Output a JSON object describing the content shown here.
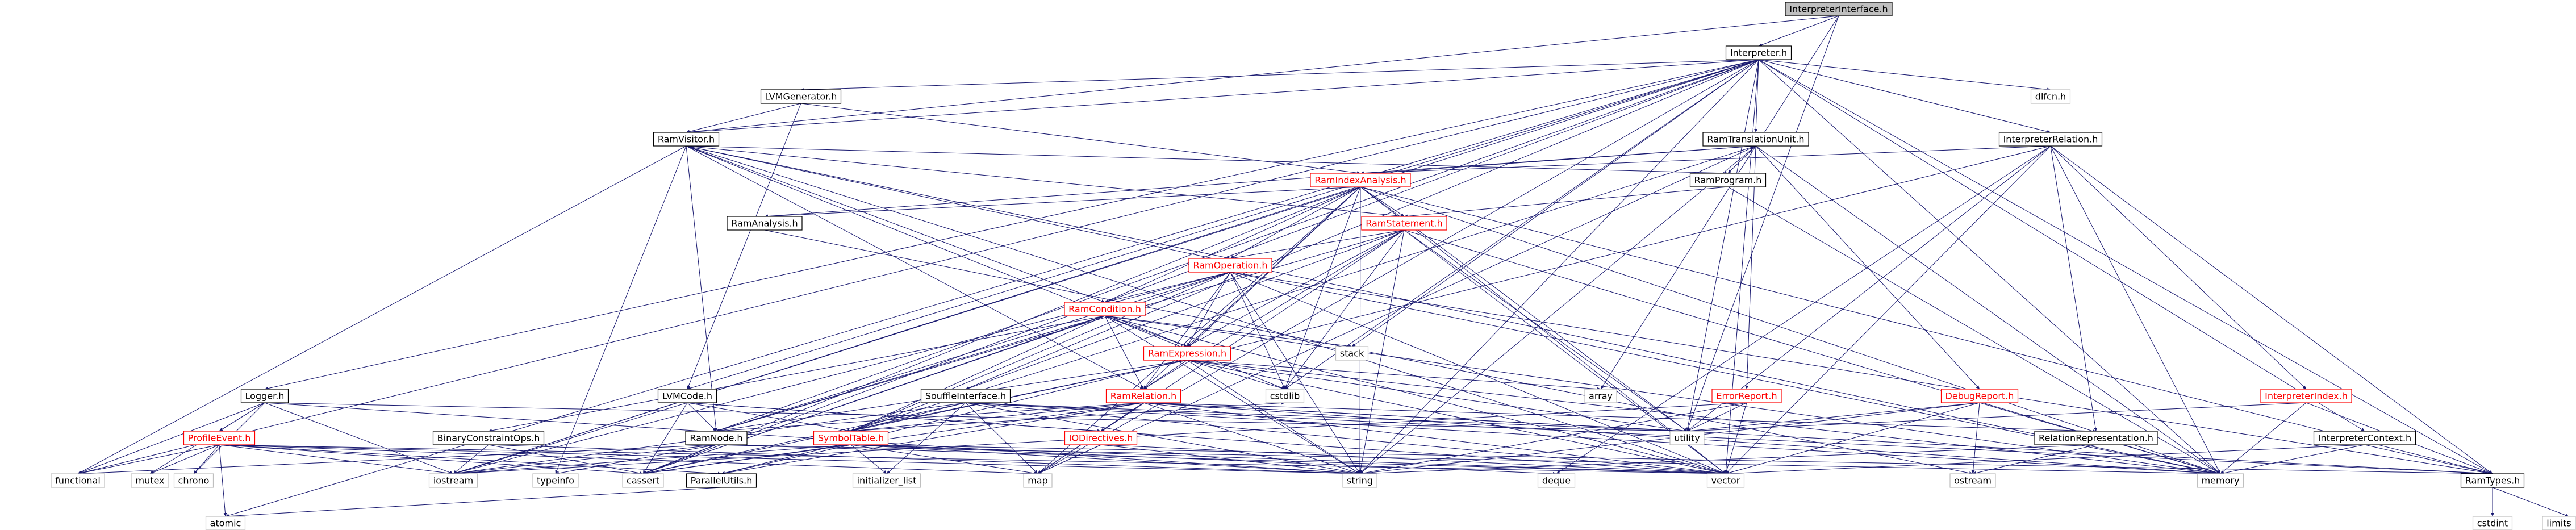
{
  "diagram": {
    "node_styles": {
      "root": {
        "fill": "#bfbfbf",
        "stroke": "#000000",
        "text": "#000000"
      },
      "internal": {
        "fill": "#ffffff",
        "stroke": "#000000",
        "text": "#000000"
      },
      "partial": {
        "fill": "#ffffff",
        "stroke": "#ff0000",
        "text": "#ff0000"
      },
      "external": {
        "fill": "#ffffff",
        "stroke": "#bfbfbf",
        "text": "#000000"
      }
    },
    "edge_color": "#191970",
    "nodes": [
      {
        "id": "InterpreterInterface.h",
        "label": "InterpreterInterface.h",
        "style": "root"
      },
      {
        "id": "Interpreter.h",
        "label": "Interpreter.h",
        "style": "internal"
      },
      {
        "id": "LVMGenerator.h",
        "label": "LVMGenerator.h",
        "style": "internal"
      },
      {
        "id": "RamTranslationUnit.h",
        "label": "RamTranslationUnit.h",
        "style": "internal"
      },
      {
        "id": "InterpreterRelation.h",
        "label": "InterpreterRelation.h",
        "style": "internal"
      },
      {
        "id": "dlfcn.h",
        "label": "dlfcn.h",
        "style": "external"
      },
      {
        "id": "RamVisitor.h",
        "label": "RamVisitor.h",
        "style": "internal"
      },
      {
        "id": "RamIndexAnalysis.h",
        "label": "RamIndexAnalysis.h",
        "style": "partial"
      },
      {
        "id": "RamProgram.h",
        "label": "RamProgram.h",
        "style": "internal"
      },
      {
        "id": "RamAnalysis.h",
        "label": "RamAnalysis.h",
        "style": "internal"
      },
      {
        "id": "RamStatement.h",
        "label": "RamStatement.h",
        "style": "partial"
      },
      {
        "id": "RamOperation.h",
        "label": "RamOperation.h",
        "style": "partial"
      },
      {
        "id": "RamCondition.h",
        "label": "RamCondition.h",
        "style": "partial"
      },
      {
        "id": "RamExpression.h",
        "label": "RamExpression.h",
        "style": "partial"
      },
      {
        "id": "RamRelation.h",
        "label": "RamRelation.h",
        "style": "partial"
      },
      {
        "id": "Logger.h",
        "label": "Logger.h",
        "style": "internal"
      },
      {
        "id": "LVMCode.h",
        "label": "LVMCode.h",
        "style": "internal"
      },
      {
        "id": "SouffleInterface.h",
        "label": "SouffleInterface.h",
        "style": "internal"
      },
      {
        "id": "BinaryConstraintOps.h",
        "label": "BinaryConstraintOps.h",
        "style": "internal"
      },
      {
        "id": "RamNode.h",
        "label": "RamNode.h",
        "style": "internal"
      },
      {
        "id": "SymbolTable.h",
        "label": "SymbolTable.h",
        "style": "partial"
      },
      {
        "id": "IODirectives.h",
        "label": "IODirectives.h",
        "style": "partial"
      },
      {
        "id": "ProfileEvent.h",
        "label": "ProfileEvent.h",
        "style": "partial"
      },
      {
        "id": "ParallelUtils.h",
        "label": "ParallelUtils.h",
        "style": "internal"
      },
      {
        "id": "ErrorReport.h",
        "label": "ErrorReport.h",
        "style": "partial"
      },
      {
        "id": "DebugReport.h",
        "label": "DebugReport.h",
        "style": "partial"
      },
      {
        "id": "InterpreterIndex.h",
        "label": "InterpreterIndex.h",
        "style": "partial"
      },
      {
        "id": "RelationRepresentation.h",
        "label": "RelationRepresentation.h",
        "style": "internal"
      },
      {
        "id": "InterpreterContext.h",
        "label": "InterpreterContext.h",
        "style": "internal"
      },
      {
        "id": "RamTypes.h",
        "label": "RamTypes.h",
        "style": "internal"
      },
      {
        "id": "stack",
        "label": "stack",
        "style": "external"
      },
      {
        "id": "array",
        "label": "array",
        "style": "external"
      },
      {
        "id": "cstdlib",
        "label": "cstdlib",
        "style": "external"
      },
      {
        "id": "utility",
        "label": "utility",
        "style": "external"
      },
      {
        "id": "functional",
        "label": "functional",
        "style": "external"
      },
      {
        "id": "mutex",
        "label": "mutex",
        "style": "external"
      },
      {
        "id": "chrono",
        "label": "chrono",
        "style": "external"
      },
      {
        "id": "iostream",
        "label": "iostream",
        "style": "external"
      },
      {
        "id": "typeinfo",
        "label": "typeinfo",
        "style": "external"
      },
      {
        "id": "cassert",
        "label": "cassert",
        "style": "external"
      },
      {
        "id": "atomic",
        "label": "atomic",
        "style": "external"
      },
      {
        "id": "initializer_list",
        "label": "initializer_list",
        "style": "external"
      },
      {
        "id": "map",
        "label": "map",
        "style": "external"
      },
      {
        "id": "string",
        "label": "string",
        "style": "external"
      },
      {
        "id": "deque",
        "label": "deque",
        "style": "external"
      },
      {
        "id": "vector",
        "label": "vector",
        "style": "external"
      },
      {
        "id": "ostream",
        "label": "ostream",
        "style": "external"
      },
      {
        "id": "memory",
        "label": "memory",
        "style": "external"
      },
      {
        "id": "cstdint",
        "label": "cstdint",
        "style": "external"
      },
      {
        "id": "limits",
        "label": "limits",
        "style": "external"
      }
    ],
    "edges": [
      [
        "InterpreterInterface.h",
        "Interpreter.h"
      ],
      [
        "InterpreterInterface.h",
        "RamVisitor.h"
      ],
      [
        "InterpreterInterface.h",
        "utility"
      ],
      [
        "InterpreterInterface.h",
        "array"
      ],
      [
        "Interpreter.h",
        "LVMGenerator.h"
      ],
      [
        "Interpreter.h",
        "RamTranslationUnit.h"
      ],
      [
        "Interpreter.h",
        "InterpreterRelation.h"
      ],
      [
        "Interpreter.h",
        "dlfcn.h"
      ],
      [
        "Interpreter.h",
        "Logger.h"
      ],
      [
        "Interpreter.h",
        "LVMCode.h"
      ],
      [
        "Interpreter.h",
        "SouffleInterface.h"
      ],
      [
        "Interpreter.h",
        "RamNode.h"
      ],
      [
        "Interpreter.h",
        "InterpreterContext.h"
      ],
      [
        "Interpreter.h",
        "RamTypes.h"
      ],
      [
        "Interpreter.h",
        "stack"
      ],
      [
        "Interpreter.h",
        "cstdlib"
      ],
      [
        "Interpreter.h",
        "utility"
      ],
      [
        "Interpreter.h",
        "functional"
      ],
      [
        "Interpreter.h",
        "iostream"
      ],
      [
        "Interpreter.h",
        "cassert"
      ],
      [
        "Interpreter.h",
        "atomic"
      ],
      [
        "Interpreter.h",
        "map"
      ],
      [
        "Interpreter.h",
        "string"
      ],
      [
        "Interpreter.h",
        "vector"
      ],
      [
        "Interpreter.h",
        "memory"
      ],
      [
        "Interpreter.h",
        "RamVisitor.h"
      ],
      [
        "LVMGenerator.h",
        "RamVisitor.h"
      ],
      [
        "LVMGenerator.h",
        "RamIndexAnalysis.h"
      ],
      [
        "LVMGenerator.h",
        "LVMCode.h"
      ],
      [
        "RamTranslationUnit.h",
        "RamProgram.h"
      ],
      [
        "RamTranslationUnit.h",
        "RamIndexAnalysis.h"
      ],
      [
        "RamTranslationUnit.h",
        "ErrorReport.h"
      ],
      [
        "RamTranslationUnit.h",
        "DebugReport.h"
      ],
      [
        "RamTranslationUnit.h",
        "SymbolTable.h"
      ],
      [
        "RamTranslationUnit.h",
        "RamAnalysis.h"
      ],
      [
        "RamTranslationUnit.h",
        "map"
      ],
      [
        "RamTranslationUnit.h",
        "memory"
      ],
      [
        "RamTranslationUnit.h",
        "string"
      ],
      [
        "InterpreterRelation.h",
        "InterpreterIndex.h"
      ],
      [
        "InterpreterRelation.h",
        "RamIndexAnalysis.h"
      ],
      [
        "InterpreterRelation.h",
        "RelationRepresentation.h"
      ],
      [
        "InterpreterRelation.h",
        "RamTypes.h"
      ],
      [
        "InterpreterRelation.h",
        "ParallelUtils.h"
      ],
      [
        "InterpreterRelation.h",
        "deque"
      ],
      [
        "InterpreterRelation.h",
        "vector"
      ],
      [
        "InterpreterRelation.h",
        "memory"
      ],
      [
        "InterpreterRelation.h",
        "utility"
      ],
      [
        "RamVisitor.h",
        "RamProgram.h"
      ],
      [
        "RamVisitor.h",
        "RamStatement.h"
      ],
      [
        "RamVisitor.h",
        "RamOperation.h"
      ],
      [
        "RamVisitor.h",
        "RamCondition.h"
      ],
      [
        "RamVisitor.h",
        "RamExpression.h"
      ],
      [
        "RamVisitor.h",
        "RamRelation.h"
      ],
      [
        "RamVisitor.h",
        "RamNode.h"
      ],
      [
        "RamVisitor.h",
        "functional"
      ],
      [
        "RamVisitor.h",
        "typeinfo"
      ],
      [
        "RamVisitor.h",
        "vector"
      ],
      [
        "RamVisitor.h",
        "memory"
      ],
      [
        "RamIndexAnalysis.h",
        "RamAnalysis.h"
      ],
      [
        "RamIndexAnalysis.h",
        "RamStatement.h"
      ],
      [
        "RamIndexAnalysis.h",
        "RamOperation.h"
      ],
      [
        "RamIndexAnalysis.h",
        "RamCondition.h"
      ],
      [
        "RamIndexAnalysis.h",
        "RamExpression.h"
      ],
      [
        "RamIndexAnalysis.h",
        "RamRelation.h"
      ],
      [
        "RamIndexAnalysis.h",
        "RamTypes.h"
      ],
      [
        "RamIndexAnalysis.h",
        "cstdlib"
      ],
      [
        "RamIndexAnalysis.h",
        "iostream"
      ],
      [
        "RamIndexAnalysis.h",
        "map"
      ],
      [
        "RamIndexAnalysis.h",
        "string"
      ],
      [
        "RamIndexAnalysis.h",
        "utility"
      ],
      [
        "RamIndexAnalysis.h",
        "vector"
      ],
      [
        "RamIndexAnalysis.h",
        "memory"
      ],
      [
        "RamIndexAnalysis.h",
        "cassert"
      ],
      [
        "RamProgram.h",
        "RamStatement.h"
      ],
      [
        "RamProgram.h",
        "memory"
      ],
      [
        "RamAnalysis.h",
        "ostream"
      ],
      [
        "RamStatement.h",
        "RamOperation.h"
      ],
      [
        "RamStatement.h",
        "RamExpression.h"
      ],
      [
        "RamStatement.h",
        "RamRelation.h"
      ],
      [
        "RamStatement.h",
        "RamNode.h"
      ],
      [
        "RamStatement.h",
        "SymbolTable.h"
      ],
      [
        "RamStatement.h",
        "cstdlib"
      ],
      [
        "RamStatement.h",
        "string"
      ],
      [
        "RamStatement.h",
        "utility"
      ],
      [
        "RamStatement.h",
        "vector"
      ],
      [
        "RamStatement.h",
        "memory"
      ],
      [
        "RamStatement.h",
        "map"
      ],
      [
        "RamOperation.h",
        "RamCondition.h"
      ],
      [
        "RamOperation.h",
        "RamExpression.h"
      ],
      [
        "RamOperation.h",
        "RamRelation.h"
      ],
      [
        "RamOperation.h",
        "RamNode.h"
      ],
      [
        "RamOperation.h",
        "RamTypes.h"
      ],
      [
        "RamOperation.h",
        "SymbolTable.h"
      ],
      [
        "RamOperation.h",
        "cstdlib"
      ],
      [
        "RamOperation.h",
        "iostream"
      ],
      [
        "RamOperation.h",
        "string"
      ],
      [
        "RamOperation.h",
        "vector"
      ],
      [
        "RamOperation.h",
        "cassert"
      ],
      [
        "RamOperation.h",
        "memory"
      ],
      [
        "RamCondition.h",
        "RamExpression.h"
      ],
      [
        "RamCondition.h",
        "RamRelation.h"
      ],
      [
        "RamCondition.h",
        "RamNode.h"
      ],
      [
        "RamCondition.h",
        "BinaryConstraintOps.h"
      ],
      [
        "RamCondition.h",
        "SymbolTable.h"
      ],
      [
        "RamCondition.h",
        "stack"
      ],
      [
        "RamCondition.h",
        "cstdlib"
      ],
      [
        "RamCondition.h",
        "string"
      ],
      [
        "RamCondition.h",
        "vector"
      ],
      [
        "RamCondition.h",
        "memory"
      ],
      [
        "RamCondition.h",
        "cassert"
      ],
      [
        "RamExpression.h",
        "RamRelation.h"
      ],
      [
        "RamExpression.h",
        "RamNode.h"
      ],
      [
        "RamExpression.h",
        "SymbolTable.h"
      ],
      [
        "RamExpression.h",
        "array"
      ],
      [
        "RamExpression.h",
        "cstdlib"
      ],
      [
        "RamExpression.h",
        "utility"
      ],
      [
        "RamExpression.h",
        "string"
      ],
      [
        "RamExpression.h",
        "vector"
      ],
      [
        "RamExpression.h",
        "memory"
      ],
      [
        "RamExpression.h",
        "cassert"
      ],
      [
        "RamRelation.h",
        "RamNode.h"
      ],
      [
        "RamRelation.h",
        "SymbolTable.h"
      ],
      [
        "RamRelation.h",
        "IODirectives.h"
      ],
      [
        "RamRelation.h",
        "RelationRepresentation.h"
      ],
      [
        "RamRelation.h",
        "RamTypes.h"
      ],
      [
        "RamRelation.h",
        "ParallelUtils.h"
      ],
      [
        "RamRelation.h",
        "utility"
      ],
      [
        "RamRelation.h",
        "map"
      ],
      [
        "RamRelation.h",
        "string"
      ],
      [
        "RamRelation.h",
        "vector"
      ],
      [
        "RamRelation.h",
        "memory"
      ],
      [
        "RamRelation.h",
        "cassert"
      ],
      [
        "Logger.h",
        "ProfileEvent.h"
      ],
      [
        "Logger.h",
        "utility"
      ],
      [
        "Logger.h",
        "functional"
      ],
      [
        "Logger.h",
        "mutex"
      ],
      [
        "Logger.h",
        "chrono"
      ],
      [
        "Logger.h",
        "iostream"
      ],
      [
        "Logger.h",
        "string"
      ],
      [
        "LVMCode.h",
        "RamNode.h"
      ],
      [
        "LVMCode.h",
        "SymbolTable.h"
      ],
      [
        "LVMCode.h",
        "IODirectives.h"
      ],
      [
        "LVMCode.h",
        "cassert"
      ],
      [
        "LVMCode.h",
        "vector"
      ],
      [
        "LVMCode.h",
        "iostream"
      ],
      [
        "SouffleInterface.h",
        "SymbolTable.h"
      ],
      [
        "SouffleInterface.h",
        "RamTypes.h"
      ],
      [
        "SouffleInterface.h",
        "initializer_list"
      ],
      [
        "SouffleInterface.h",
        "iostream"
      ],
      [
        "SouffleInterface.h",
        "map"
      ],
      [
        "SouffleInterface.h",
        "memory"
      ],
      [
        "SouffleInterface.h",
        "string"
      ],
      [
        "SouffleInterface.h",
        "vector"
      ],
      [
        "SouffleInterface.h",
        "cassert"
      ],
      [
        "SouffleInterface.h",
        "utility"
      ],
      [
        "BinaryConstraintOps.h",
        "iostream"
      ],
      [
        "BinaryConstraintOps.h",
        "cassert"
      ],
      [
        "BinaryConstraintOps.h",
        "string"
      ],
      [
        "RamNode.h",
        "cassert"
      ],
      [
        "RamNode.h",
        "iostream"
      ],
      [
        "RamNode.h",
        "typeinfo"
      ],
      [
        "RamNode.h",
        "functional"
      ],
      [
        "RamNode.h",
        "vector"
      ],
      [
        "RamNode.h",
        "memory"
      ],
      [
        "SymbolTable.h",
        "ParallelUtils.h"
      ],
      [
        "SymbolTable.h",
        "RamTypes.h"
      ],
      [
        "SymbolTable.h",
        "initializer_list"
      ],
      [
        "SymbolTable.h",
        "iostream"
      ],
      [
        "SymbolTable.h",
        "cassert"
      ],
      [
        "SymbolTable.h",
        "map"
      ],
      [
        "SymbolTable.h",
        "string"
      ],
      [
        "SymbolTable.h",
        "deque"
      ],
      [
        "SymbolTable.h",
        "vector"
      ],
      [
        "SymbolTable.h",
        "cstdlib"
      ],
      [
        "IODirectives.h",
        "map"
      ],
      [
        "IODirectives.h",
        "string"
      ],
      [
        "IODirectives.h",
        "vector"
      ],
      [
        "ProfileEvent.h",
        "functional"
      ],
      [
        "ProfileEvent.h",
        "mutex"
      ],
      [
        "ProfileEvent.h",
        "chrono"
      ],
      [
        "ProfileEvent.h",
        "iostream"
      ],
      [
        "ProfileEvent.h",
        "atomic"
      ],
      [
        "ProfileEvent.h",
        "map"
      ],
      [
        "ProfileEvent.h",
        "string"
      ],
      [
        "ProfileEvent.h",
        "vector"
      ],
      [
        "ProfileEvent.h",
        "cassert"
      ],
      [
        "ProfileEvent.h",
        "ParallelUtils.h"
      ],
      [
        "ParallelUtils.h",
        "atomic"
      ],
      [
        "ErrorReport.h",
        "utility"
      ],
      [
        "ErrorReport.h",
        "string"
      ],
      [
        "ErrorReport.h",
        "vector"
      ],
      [
        "ErrorReport.h",
        "iostream"
      ],
      [
        "DebugReport.h",
        "ostream"
      ],
      [
        "DebugReport.h",
        "string"
      ],
      [
        "DebugReport.h",
        "vector"
      ],
      [
        "DebugReport.h",
        "memory"
      ],
      [
        "DebugReport.h",
        "utility"
      ],
      [
        "InterpreterIndex.h",
        "RamTypes.h"
      ],
      [
        "InterpreterIndex.h",
        "utility"
      ],
      [
        "InterpreterIndex.h",
        "memory"
      ],
      [
        "RelationRepresentation.h",
        "ostream"
      ],
      [
        "RelationRepresentation.h",
        "string"
      ],
      [
        "InterpreterContext.h",
        "RamTypes.h"
      ],
      [
        "InterpreterContext.h",
        "vector"
      ],
      [
        "InterpreterContext.h",
        "memory"
      ],
      [
        "RamTypes.h",
        "cstdint"
      ],
      [
        "RamTypes.h",
        "limits"
      ]
    ]
  }
}
